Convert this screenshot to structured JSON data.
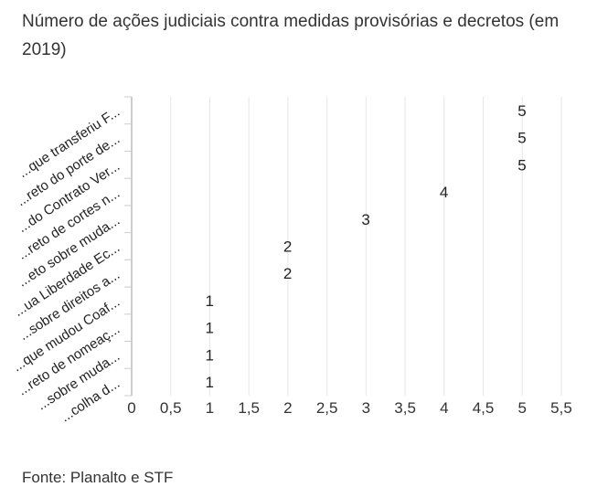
{
  "chart_data": {
    "type": "bar",
    "orientation": "horizontal",
    "title": "Número de ações judiciais contra medidas provisórias e decretos (em 2019)",
    "categories": [
      "...que transferiu F...",
      "...reto do porte de...",
      "...do Contrato Ver...",
      "...reto de cortes n...",
      "...eto sobre muda...",
      "...ua Liberdade Ec...",
      "...sobre direitos a...",
      "...que mudou Coaf...",
      "...reto de nomeaç...",
      "...sobre muda...",
      "...colha d..."
    ],
    "values": [
      5,
      5,
      5,
      4,
      3,
      2,
      2,
      1,
      1,
      1,
      1
    ],
    "xlim": [
      0,
      5.5
    ],
    "xticks": [
      "0",
      "0,5",
      "1",
      "1,5",
      "2",
      "2,5",
      "3",
      "3,5",
      "4",
      "4,5",
      "5",
      "5,5"
    ],
    "grid": true,
    "source": "Fonte: Planalto e STF"
  }
}
